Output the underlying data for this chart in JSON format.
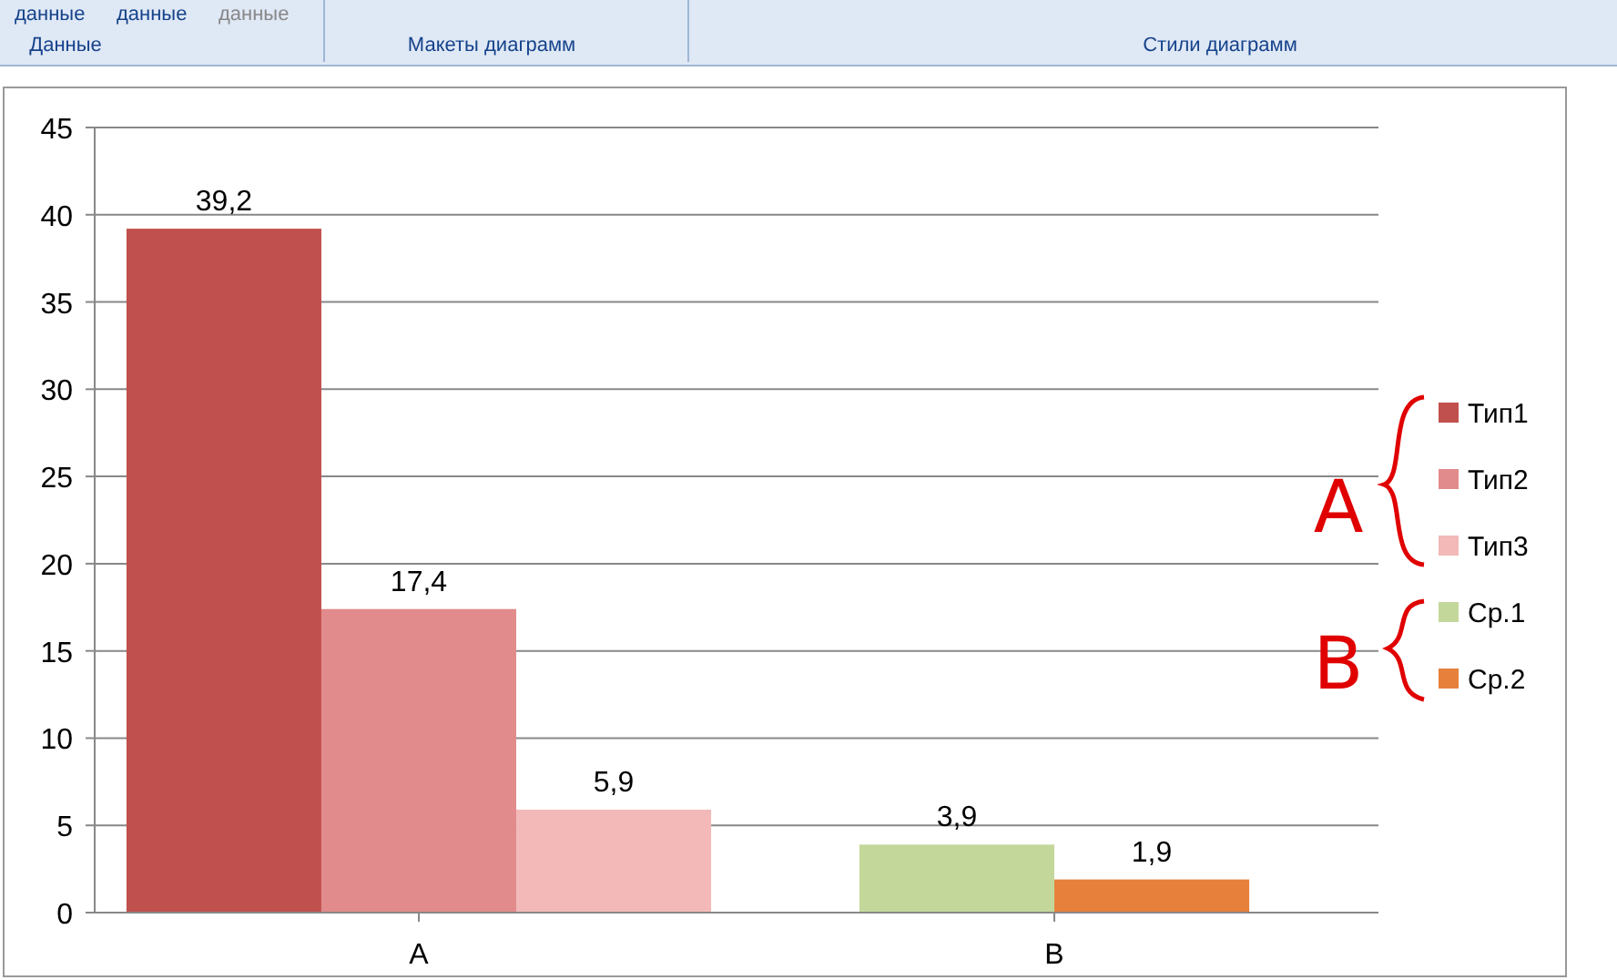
{
  "chart_data": {
    "type": "bar",
    "categories": [
      "A",
      "B"
    ],
    "series": [
      {
        "name": "Тип1",
        "color": "#c0504d",
        "values": [
          39.2,
          null
        ],
        "value_labels": [
          "39,2",
          null
        ]
      },
      {
        "name": "Тип2",
        "color": "#e28b8c",
        "values": [
          17.4,
          null
        ],
        "value_labels": [
          "17,4",
          null
        ]
      },
      {
        "name": "Тип3",
        "color": "#f2b9b8",
        "values": [
          5.9,
          null
        ],
        "value_labels": [
          "5,9",
          null
        ]
      },
      {
        "name": "Ср.1",
        "color": "#c4d79b",
        "values": [
          null,
          3.9
        ],
        "value_labels": [
          null,
          "3,9"
        ]
      },
      {
        "name": "Ср.2",
        "color": "#e6803a",
        "values": [
          null,
          1.9
        ],
        "value_labels": [
          null,
          "1,9"
        ]
      }
    ],
    "ylim": [
      0,
      45
    ],
    "yticks": [
      0,
      5,
      10,
      15,
      20,
      25,
      30,
      35,
      40,
      45
    ],
    "grid": "y",
    "legend": "right",
    "annotations": [
      "данные",
      "данные",
      "данные",
      "Данные",
      "Макеты диаграмм",
      "Стили диаграмм",
      "A",
      "B"
    ]
  }
}
